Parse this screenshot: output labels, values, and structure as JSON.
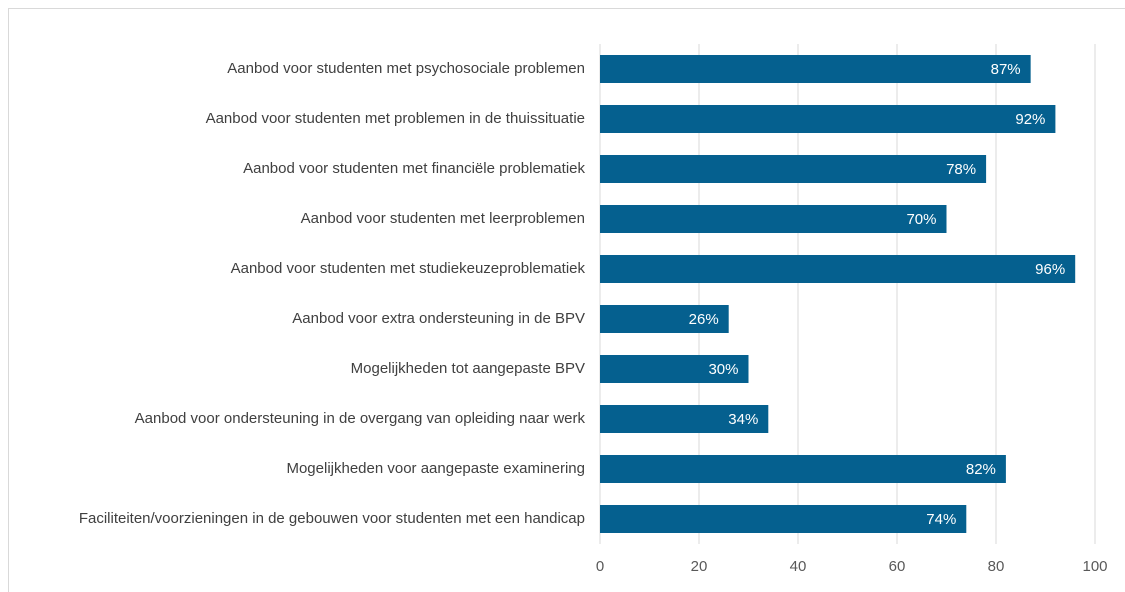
{
  "chart_data": {
    "type": "bar",
    "orientation": "horizontal",
    "categories": [
      "Aanbod voor studenten met psychosociale problemen",
      "Aanbod voor studenten met problemen in de thuissituatie",
      "Aanbod voor studenten met financiële problematiek",
      "Aanbod voor studenten met leerproblemen",
      "Aanbod voor studenten met studiekeuzeproblematiek",
      "Aanbod voor extra ondersteuning in de BPV",
      "Mogelijkheden tot aangepaste BPV",
      "Aanbod voor ondersteuning in de overgang van opleiding naar werk",
      "Mogelijkheden voor aangepaste examinering",
      "Faciliteiten/voorzieningen in de gebouwen voor studenten met een handicap"
    ],
    "values": [
      87,
      92,
      78,
      70,
      96,
      26,
      30,
      34,
      82,
      74
    ],
    "value_labels": [
      "87%",
      "92%",
      "78%",
      "70%",
      "96%",
      "26%",
      "30%",
      "34%",
      "82%",
      "74%"
    ],
    "color": "#05608f",
    "xlim": [
      0,
      100
    ],
    "xticks": [
      0,
      20,
      40,
      60,
      80,
      100
    ],
    "grid": true
  }
}
